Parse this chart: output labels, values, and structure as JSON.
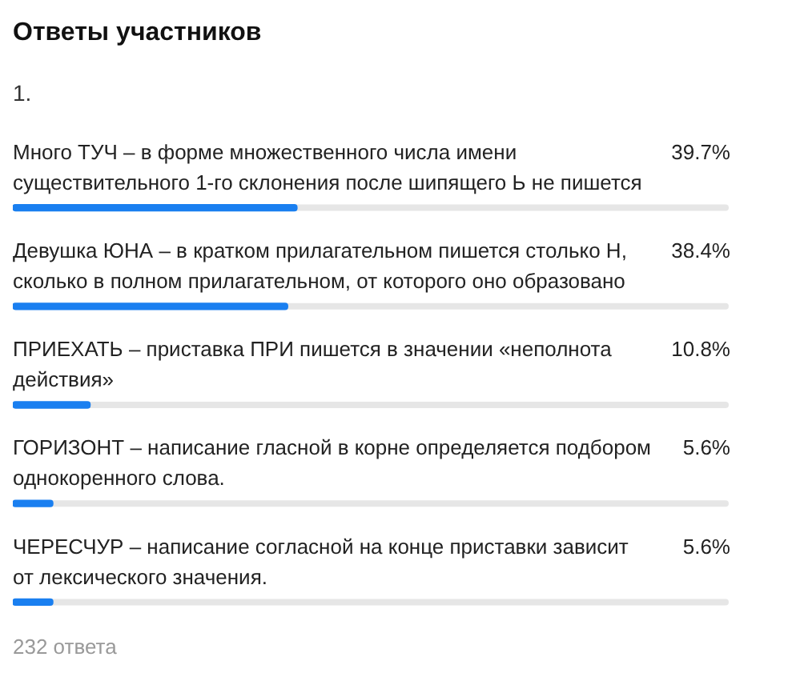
{
  "chart_data": {
    "type": "bar",
    "orientation": "horizontal",
    "title": "Ответы участников",
    "subtitle": "1.",
    "categories": [
      "Много ТУЧ – в форме множественного числа имени существительного 1-го склонения после шипящего Ь не пишется",
      "Девушка ЮНА – в кратком прилагательном пишется столько Н, сколько в полном прилагательном, от которого оно образовано",
      "ПРИЕХАТЬ – приставка ПРИ пишется в значении «неполнота действия»",
      "ГОРИЗОНТ – написание гласной в корне определяется подбором однокоренного слова.",
      "ЧЕРЕСЧУР – написание согласной на конце приставки зависит от лексического значения."
    ],
    "values": [
      39.7,
      38.4,
      10.8,
      5.6,
      5.6
    ],
    "value_labels": [
      "39.7%",
      "38.4%",
      "10.8%",
      "5.6%",
      "5.6%"
    ],
    "color": "#1a7ff0",
    "xlim": [
      0,
      100
    ],
    "tick_labels": false,
    "annotations": [
      "232 ответа"
    ]
  }
}
